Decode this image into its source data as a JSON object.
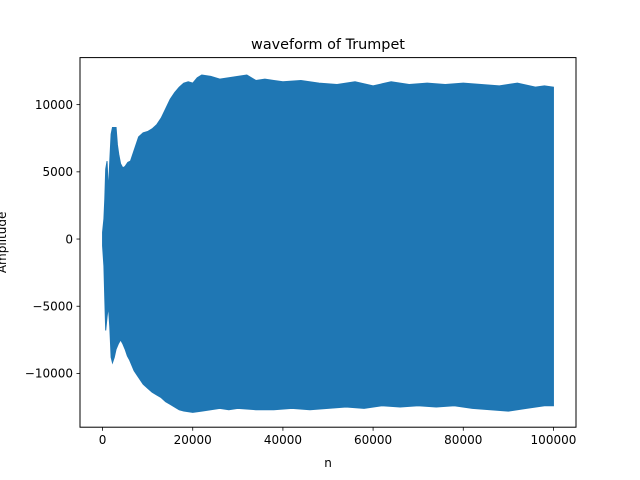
{
  "chart_data": {
    "type": "area",
    "title": "waveform of Trumpet",
    "xlabel": "n",
    "ylabel": "Amplitude",
    "xlim": [
      -5000,
      105000
    ],
    "ylim": [
      -14000,
      13500
    ],
    "xticks": [
      0,
      20000,
      40000,
      60000,
      80000,
      100000
    ],
    "xtick_labels": [
      "0",
      "20000",
      "40000",
      "60000",
      "80000",
      "100000"
    ],
    "yticks": [
      -10000,
      -5000,
      0,
      5000,
      10000
    ],
    "ytick_labels": [
      "−10000",
      "−5000",
      "0",
      "5000",
      "10000"
    ],
    "grid": false,
    "color": "#1f77b4",
    "series": [
      {
        "upper": [
          [
            0,
            500
          ],
          [
            300,
            1500
          ],
          [
            500,
            3000
          ],
          [
            700,
            5200
          ],
          [
            1000,
            5800
          ],
          [
            1300,
            3500
          ],
          [
            1600,
            5800
          ],
          [
            1900,
            7800
          ],
          [
            2200,
            8300
          ],
          [
            2600,
            8300
          ],
          [
            3000,
            8300
          ],
          [
            3300,
            7000
          ],
          [
            3600,
            6300
          ],
          [
            4000,
            5600
          ],
          [
            4500,
            5300
          ],
          [
            5000,
            5400
          ],
          [
            5600,
            5700
          ],
          [
            6200,
            5800
          ],
          [
            7000,
            6600
          ],
          [
            8000,
            7600
          ],
          [
            9000,
            7900
          ],
          [
            10000,
            8000
          ],
          [
            11000,
            8200
          ],
          [
            12000,
            8500
          ],
          [
            13000,
            9000
          ],
          [
            14000,
            9700
          ],
          [
            15000,
            10400
          ],
          [
            16000,
            10900
          ],
          [
            17000,
            11300
          ],
          [
            18000,
            11600
          ],
          [
            19000,
            11700
          ],
          [
            20000,
            11600
          ],
          [
            21000,
            12000
          ],
          [
            22000,
            12200
          ],
          [
            24000,
            12100
          ],
          [
            26000,
            11900
          ],
          [
            28000,
            12000
          ],
          [
            30000,
            12100
          ],
          [
            32000,
            12200
          ],
          [
            34000,
            11800
          ],
          [
            36000,
            11900
          ],
          [
            38000,
            11800
          ],
          [
            40000,
            11700
          ],
          [
            44000,
            11800
          ],
          [
            48000,
            11600
          ],
          [
            52000,
            11500
          ],
          [
            56000,
            11700
          ],
          [
            60000,
            11400
          ],
          [
            64000,
            11700
          ],
          [
            68000,
            11500
          ],
          [
            72000,
            11600
          ],
          [
            76000,
            11500
          ],
          [
            80000,
            11600
          ],
          [
            84000,
            11500
          ],
          [
            88000,
            11400
          ],
          [
            92000,
            11600
          ],
          [
            96000,
            11300
          ],
          [
            98000,
            11400
          ],
          [
            100000,
            11300
          ]
        ],
        "lower": [
          [
            0,
            -500
          ],
          [
            300,
            -2000
          ],
          [
            500,
            -4500
          ],
          [
            700,
            -6800
          ],
          [
            1000,
            -5800
          ],
          [
            1300,
            -5000
          ],
          [
            1600,
            -6500
          ],
          [
            1900,
            -8800
          ],
          [
            2200,
            -9200
          ],
          [
            2600,
            -8800
          ],
          [
            3000,
            -8200
          ],
          [
            3500,
            -7800
          ],
          [
            4000,
            -7500
          ],
          [
            4500,
            -7800
          ],
          [
            5000,
            -8200
          ],
          [
            5500,
            -8700
          ],
          [
            6000,
            -9000
          ],
          [
            7000,
            -9800
          ],
          [
            8000,
            -10300
          ],
          [
            9000,
            -10800
          ],
          [
            10000,
            -11100
          ],
          [
            11000,
            -11400
          ],
          [
            12000,
            -11600
          ],
          [
            13000,
            -11800
          ],
          [
            14000,
            -12100
          ],
          [
            15000,
            -12300
          ],
          [
            16000,
            -12500
          ],
          [
            17000,
            -12700
          ],
          [
            18000,
            -12800
          ],
          [
            20000,
            -12900
          ],
          [
            22000,
            -12800
          ],
          [
            24000,
            -12700
          ],
          [
            26000,
            -12600
          ],
          [
            28000,
            -12700
          ],
          [
            30000,
            -12600
          ],
          [
            34000,
            -12700
          ],
          [
            38000,
            -12700
          ],
          [
            42000,
            -12600
          ],
          [
            46000,
            -12700
          ],
          [
            50000,
            -12600
          ],
          [
            54000,
            -12500
          ],
          [
            58000,
            -12600
          ],
          [
            62000,
            -12400
          ],
          [
            66000,
            -12500
          ],
          [
            70000,
            -12400
          ],
          [
            74000,
            -12500
          ],
          [
            78000,
            -12400
          ],
          [
            82000,
            -12600
          ],
          [
            86000,
            -12700
          ],
          [
            90000,
            -12800
          ],
          [
            94000,
            -12600
          ],
          [
            98000,
            -12400
          ],
          [
            100000,
            -12400
          ]
        ]
      }
    ]
  }
}
